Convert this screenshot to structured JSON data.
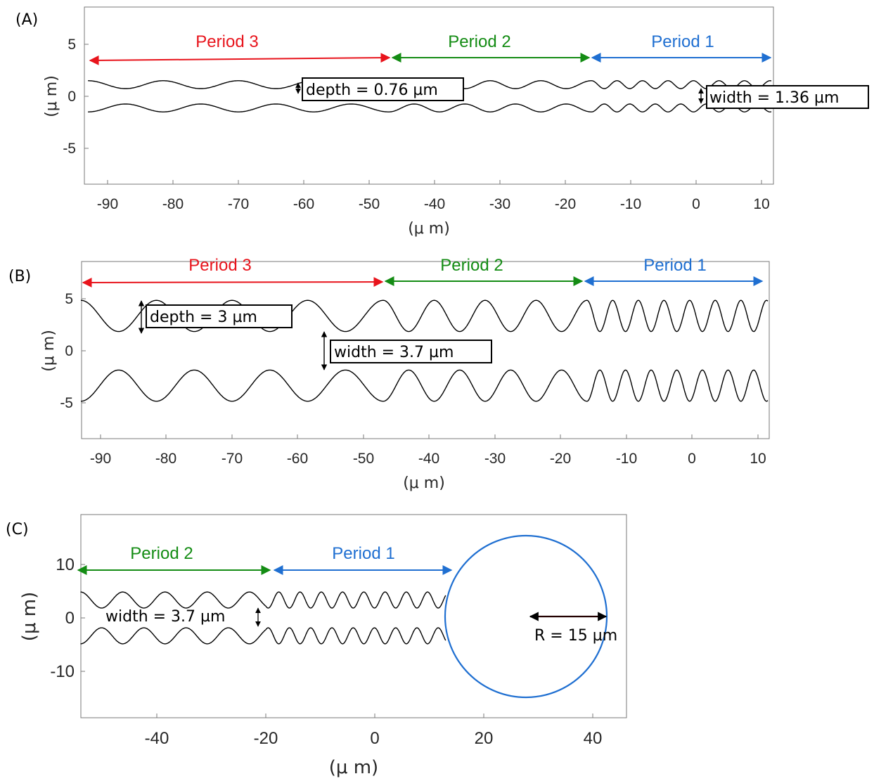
{
  "panels": {
    "a": {
      "label": "(A)",
      "xlabel": "(μ m)",
      "ylabel": "(μ m)",
      "xticks": [
        "-90",
        "-80",
        "-70",
        "-60",
        "-50",
        "-40",
        "-30",
        "-20",
        "-10",
        "0",
        "10"
      ],
      "yticks": [
        "5",
        "0",
        "-5"
      ],
      "periods": [
        {
          "label": "Period 3",
          "color": "#e8141c"
        },
        {
          "label": "Period 2",
          "color": "#148c14"
        },
        {
          "label": "Period 1",
          "color": "#1f6fd1"
        }
      ],
      "depth_label": "depth = 0.76 µm",
      "width_label": "width = 1.36 µm"
    },
    "b": {
      "label": "(B)",
      "xlabel": "(μ m)",
      "ylabel": "(μ m)",
      "xticks": [
        "-90",
        "-80",
        "-70",
        "-60",
        "-50",
        "-40",
        "-30",
        "-20",
        "-10",
        "0",
        "10"
      ],
      "yticks": [
        "5",
        "0",
        "-5"
      ],
      "periods": [
        {
          "label": "Period 3",
          "color": "#e8141c"
        },
        {
          "label": "Period 2",
          "color": "#148c14"
        },
        {
          "label": "Period 1",
          "color": "#1f6fd1"
        }
      ],
      "depth_label": "depth = 3 µm",
      "width_label": "width = 3.7 µm"
    },
    "c": {
      "label": "(C)",
      "xlabel": "(μ m)",
      "ylabel": "(μ m)",
      "xticks": [
        "-40",
        "-20",
        "0",
        "20",
        "40"
      ],
      "yticks": [
        "10",
        "0",
        "-10"
      ],
      "periods": [
        {
          "label": "Period 2",
          "color": "#148c14"
        },
        {
          "label": "Period 1",
          "color": "#1f6fd1"
        }
      ],
      "width_label": "width = 3.7 µm",
      "radius_label": "R = 15 µm",
      "circle_color": "#1f6fd1"
    }
  },
  "chart_data": [
    {
      "panel": "A",
      "type": "line",
      "xlim": [
        -93,
        11.5
      ],
      "ylim": [
        -8.5,
        8.5
      ],
      "series": [
        {
          "segment": "Period 3",
          "x_range": [
            -93,
            -47
          ],
          "wavelength": 11.5,
          "center": 1.12,
          "amplitude": 0.38
        },
        {
          "segment": "Period 2",
          "x_range": [
            -47,
            -16
          ],
          "wavelength": 7.75,
          "center": 1.12,
          "amplitude": 0.38
        },
        {
          "segment": "Period 1",
          "x_range": [
            -16,
            11.5
          ],
          "wavelength": 3.9,
          "center": 1.12,
          "amplitude": 0.38
        }
      ],
      "symmetric_walls": true,
      "period_ranges": [
        [
          -92.5,
          -47.5
        ],
        [
          -46.5,
          -16.5
        ],
        [
          -15.5,
          11
        ]
      ],
      "annotations": {
        "depth_um": 0.76,
        "width_um": 1.36
      }
    },
    {
      "panel": "B",
      "type": "line",
      "xlim": [
        -93,
        11.5
      ],
      "ylim": [
        -8.5,
        8.5
      ],
      "series": [
        {
          "segment": "Period 3",
          "x_range": [
            -93,
            -47
          ],
          "wavelength": 11.5,
          "center": 3.35,
          "amplitude": 1.5
        },
        {
          "segment": "Period 2",
          "x_range": [
            -47,
            -16
          ],
          "wavelength": 7.75,
          "center": 3.35,
          "amplitude": 1.5
        },
        {
          "segment": "Period 1",
          "x_range": [
            -16,
            11.5
          ],
          "wavelength": 3.9,
          "center": 3.35,
          "amplitude": 1.5
        }
      ],
      "symmetric_walls": true,
      "period_ranges": [
        [
          -93,
          -47
        ],
        [
          -47,
          -16.5
        ],
        [
          -16.5,
          11
        ]
      ],
      "annotations": {
        "depth_um": 3,
        "width_um": 3.7
      }
    },
    {
      "panel": "C",
      "type": "line",
      "xlim": [
        -54,
        46
      ],
      "ylim": [
        -19,
        19
      ],
      "series": [
        {
          "segment": "Period 2",
          "x_range": [
            -54,
            -20
          ],
          "wavelength": 7.75,
          "center": 3.35,
          "amplitude": 1.5
        },
        {
          "segment": "Period 1",
          "x_range": [
            -20,
            13
          ],
          "wavelength": 3.9,
          "center": 3.35,
          "amplitude": 1.5
        }
      ],
      "symmetric_walls": true,
      "period_ranges": [
        [
          -54,
          -19
        ],
        [
          -19,
          14.5
        ]
      ],
      "circle": {
        "center_x": 28,
        "center_y": 0,
        "radius": 15
      },
      "annotations": {
        "width_um": 3.7,
        "radius_um": 15
      }
    }
  ]
}
